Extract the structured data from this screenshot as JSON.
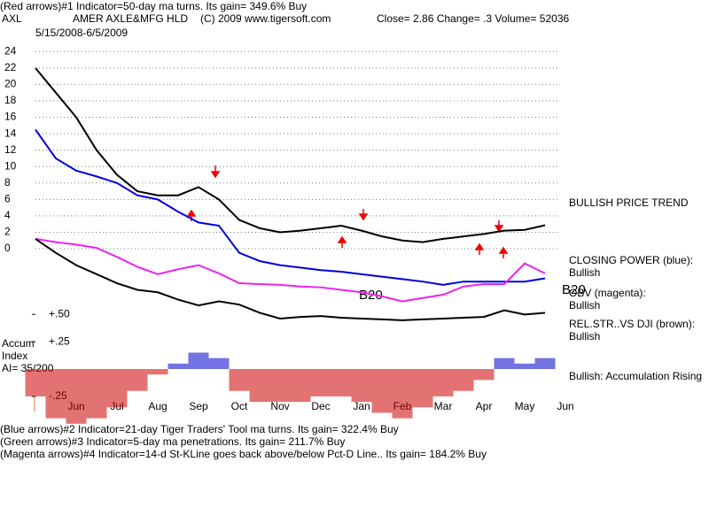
{
  "chart_data": {
    "type": "line",
    "header_note": "(Red arrows)#1 Indicator=50-day ma turns. Its gain= 349.6% Buy",
    "ticker": "AXL",
    "title": "AMER AXLE&MFG HLD",
    "copyright": "(C) 2009 www.tigersoft.com",
    "quote": "Close=  2.86  Change= .3 Volume= 52036",
    "date_range": "5/15/2008-6/5/2009",
    "categories": [
      null,
      null,
      "Jun",
      null,
      "Jul",
      null,
      "Aug",
      null,
      "Sep",
      null,
      "Oct",
      null,
      "Nov",
      null,
      "Dec",
      null,
      "Jan",
      null,
      "Feb",
      null,
      "Mar",
      null,
      "Apr",
      null,
      "May",
      null,
      "Jun"
    ],
    "ylim": [
      -9,
      25
    ],
    "yticks": [
      0,
      2,
      4,
      6,
      8,
      10,
      12,
      14,
      16,
      18,
      20,
      22,
      24
    ],
    "grid": true,
    "series": [
      {
        "color": "#000000",
        "values": [
          22,
          19,
          16,
          12,
          9,
          7,
          6.5,
          6.5,
          7.5,
          6,
          3.5,
          2.5,
          2,
          2.2,
          2.5,
          2.8,
          2.2,
          1.5,
          1,
          0.8,
          1.2,
          1.5,
          1.8,
          2.2,
          2.3,
          2.86,
          null
        ]
      },
      {
        "color": "#0000dd",
        "values": [
          14.5,
          11,
          9.5,
          8.8,
          8,
          6.5,
          6,
          4.5,
          3.2,
          2.8,
          -0.5,
          -1.5,
          -2,
          -2.3,
          -2.6,
          -2.8,
          -3.1,
          -3.4,
          -3.7,
          -4,
          -4.4,
          -4,
          -4,
          -4,
          -4,
          -3.6,
          null
        ]
      },
      {
        "color": "#ee22ee",
        "values": [
          1.2,
          0.8,
          0.5,
          0.1,
          -1,
          -2.2,
          -3.1,
          -2.5,
          -2,
          -3,
          -4.2,
          -4.3,
          -4.4,
          -4.6,
          -4.7,
          -5,
          -5.3,
          -5.8,
          -6.4,
          -6,
          -5.6,
          -4.6,
          -4.3,
          -4.3,
          -1.8,
          -3,
          null
        ]
      },
      {
        "color": "#000000",
        "values": [
          1.2,
          -0.5,
          -2,
          -3.1,
          -4.2,
          -5,
          -5.3,
          -6.2,
          -6.9,
          -6.4,
          -6.8,
          -7.8,
          -8.5,
          -8.3,
          -8.2,
          -8.4,
          -8.5,
          -8.6,
          -8.7,
          -8.6,
          -8.5,
          -8.4,
          -8.3,
          -7.5,
          -8,
          -7.8,
          null
        ]
      }
    ],
    "annotations": [
      "BULLISH PRICE TREND",
      "CLOSING POWER (blue):",
      "Bullish",
      "OBV (magenta):",
      "Bullish",
      "REL.STR..VS DJI (brown):",
      "Bullish",
      "Bullish: Accumulation Rising"
    ],
    "b20_labels": [
      "B20",
      "B20"
    ],
    "accum": {
      "labels": [
        "Accum",
        "Index",
        "AI= 35/200"
      ],
      "ylim": [
        -0.55,
        0.55
      ],
      "yticks": [
        {
          "value": 0.5,
          "label": "+.50"
        },
        {
          "value": 0.25,
          "label": "+.25"
        },
        {
          "value": -0.25,
          "label": "-.25"
        }
      ],
      "pos_color": "#0000cc",
      "neg_color": "#cc0000",
      "values": [
        -0.25,
        -0.45,
        -0.5,
        -0.45,
        -0.35,
        -0.2,
        -0.05,
        0.05,
        0.15,
        0.1,
        -0.2,
        -0.3,
        -0.3,
        -0.3,
        -0.25,
        -0.25,
        -0.3,
        -0.4,
        -0.45,
        -0.35,
        -0.25,
        -0.2,
        -0.1,
        0.1,
        0.05,
        0.1,
        null
      ]
    },
    "footer_notes": [
      "(Blue arrows)#2 Indicator=21-day Tiger Traders' Tool ma turns. Its gain= 322.4% Buy",
      "(Green arrows)#3 Indicator=5-day ma penetrations. Its gain= 211.7% Buy",
      "(Magenta arrows)#4 Indicator=14-d St-KLine goes back above/below Pct-D Line.. Its gain= 184.2% Buy"
    ]
  }
}
